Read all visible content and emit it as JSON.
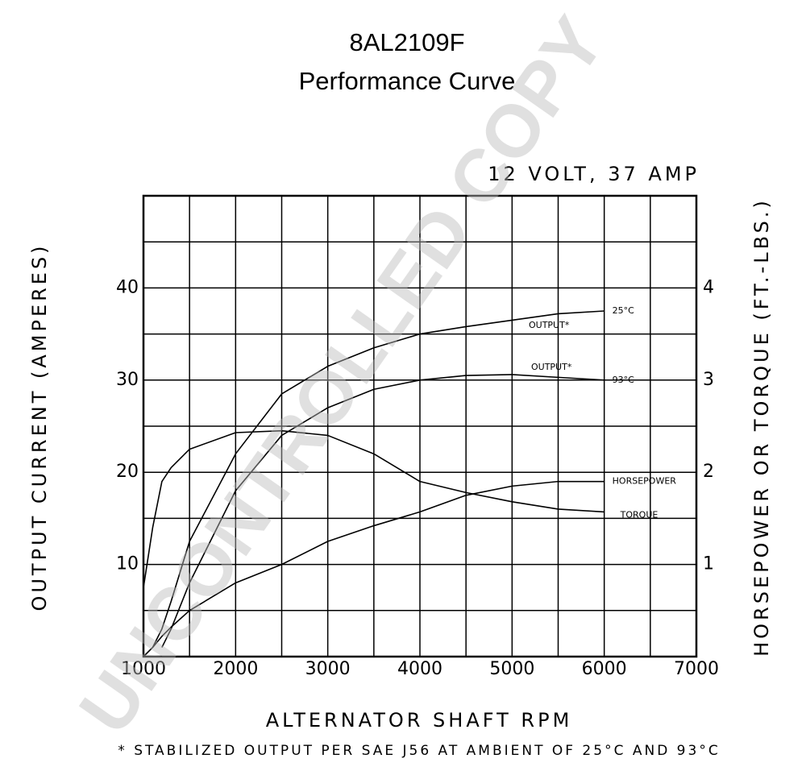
{
  "chart_data": {
    "type": "line",
    "title": "8AL2109F",
    "subtitle": "Performance Curve",
    "rating": "12 VOLT, 37 AMP",
    "xlabel": "ALTERNATOR SHAFT RPM",
    "ylabel": "OUTPUT CURRENT (AMPERES)",
    "y2label": "HORSEPOWER OR TORQUE (FT.-LBS.)",
    "footnote": "* STABILIZED OUTPUT PER SAE J56 AT AMBIENT OF 25°C AND 93°C",
    "watermark": "UNCONTROLLED COPY",
    "annotations": [
      "OUTPUT*",
      "OUTPUT*"
    ],
    "x": [
      1000,
      1100,
      1200,
      1300,
      1500,
      2000,
      2500,
      3000,
      3500,
      4000,
      4500,
      5000,
      5500,
      6000
    ],
    "series": [
      {
        "name": "25°C",
        "color": "#000000",
        "values": [
          null,
          1,
          3,
          6,
          12.5,
          22,
          28.5,
          31.5,
          33.5,
          35,
          35.8,
          36.5,
          37.2,
          37.5
        ]
      },
      {
        "name": "93°C",
        "color": "#000000",
        "values": [
          null,
          null,
          1,
          3,
          8,
          18,
          24,
          27,
          29,
          30,
          30.5,
          30.6,
          30.3,
          30
        ]
      },
      {
        "name": "HORSEPOWER",
        "color": "#000000",
        "axis": "y2",
        "values": [
          0,
          0.1,
          0.22,
          0.32,
          0.5,
          0.8,
          1.0,
          1.25,
          1.42,
          1.57,
          1.75,
          1.85,
          1.9,
          1.9
        ]
      },
      {
        "name": "TORQUE",
        "color": "#000000",
        "axis": "y2",
        "values": [
          0.75,
          1.4,
          1.9,
          2.05,
          2.25,
          2.43,
          2.45,
          2.4,
          2.2,
          1.9,
          1.78,
          1.68,
          1.6,
          1.57
        ]
      }
    ],
    "xlim": [
      1000,
      7000
    ],
    "xticks": [
      1000,
      2000,
      3000,
      4000,
      5000,
      6000,
      7000
    ],
    "ylim": [
      0,
      50
    ],
    "yticks": [
      10,
      20,
      30,
      40
    ],
    "y2lim": [
      0,
      5
    ],
    "y2ticks": [
      1,
      2,
      3,
      4
    ],
    "x_gridlines": [
      1500,
      2000,
      2500,
      3000,
      3500,
      4000,
      4500,
      5000,
      5500,
      6000,
      6500
    ],
    "y_gridlines": [
      5,
      10,
      15,
      20,
      25,
      30,
      35,
      40,
      45
    ],
    "grid": true
  }
}
